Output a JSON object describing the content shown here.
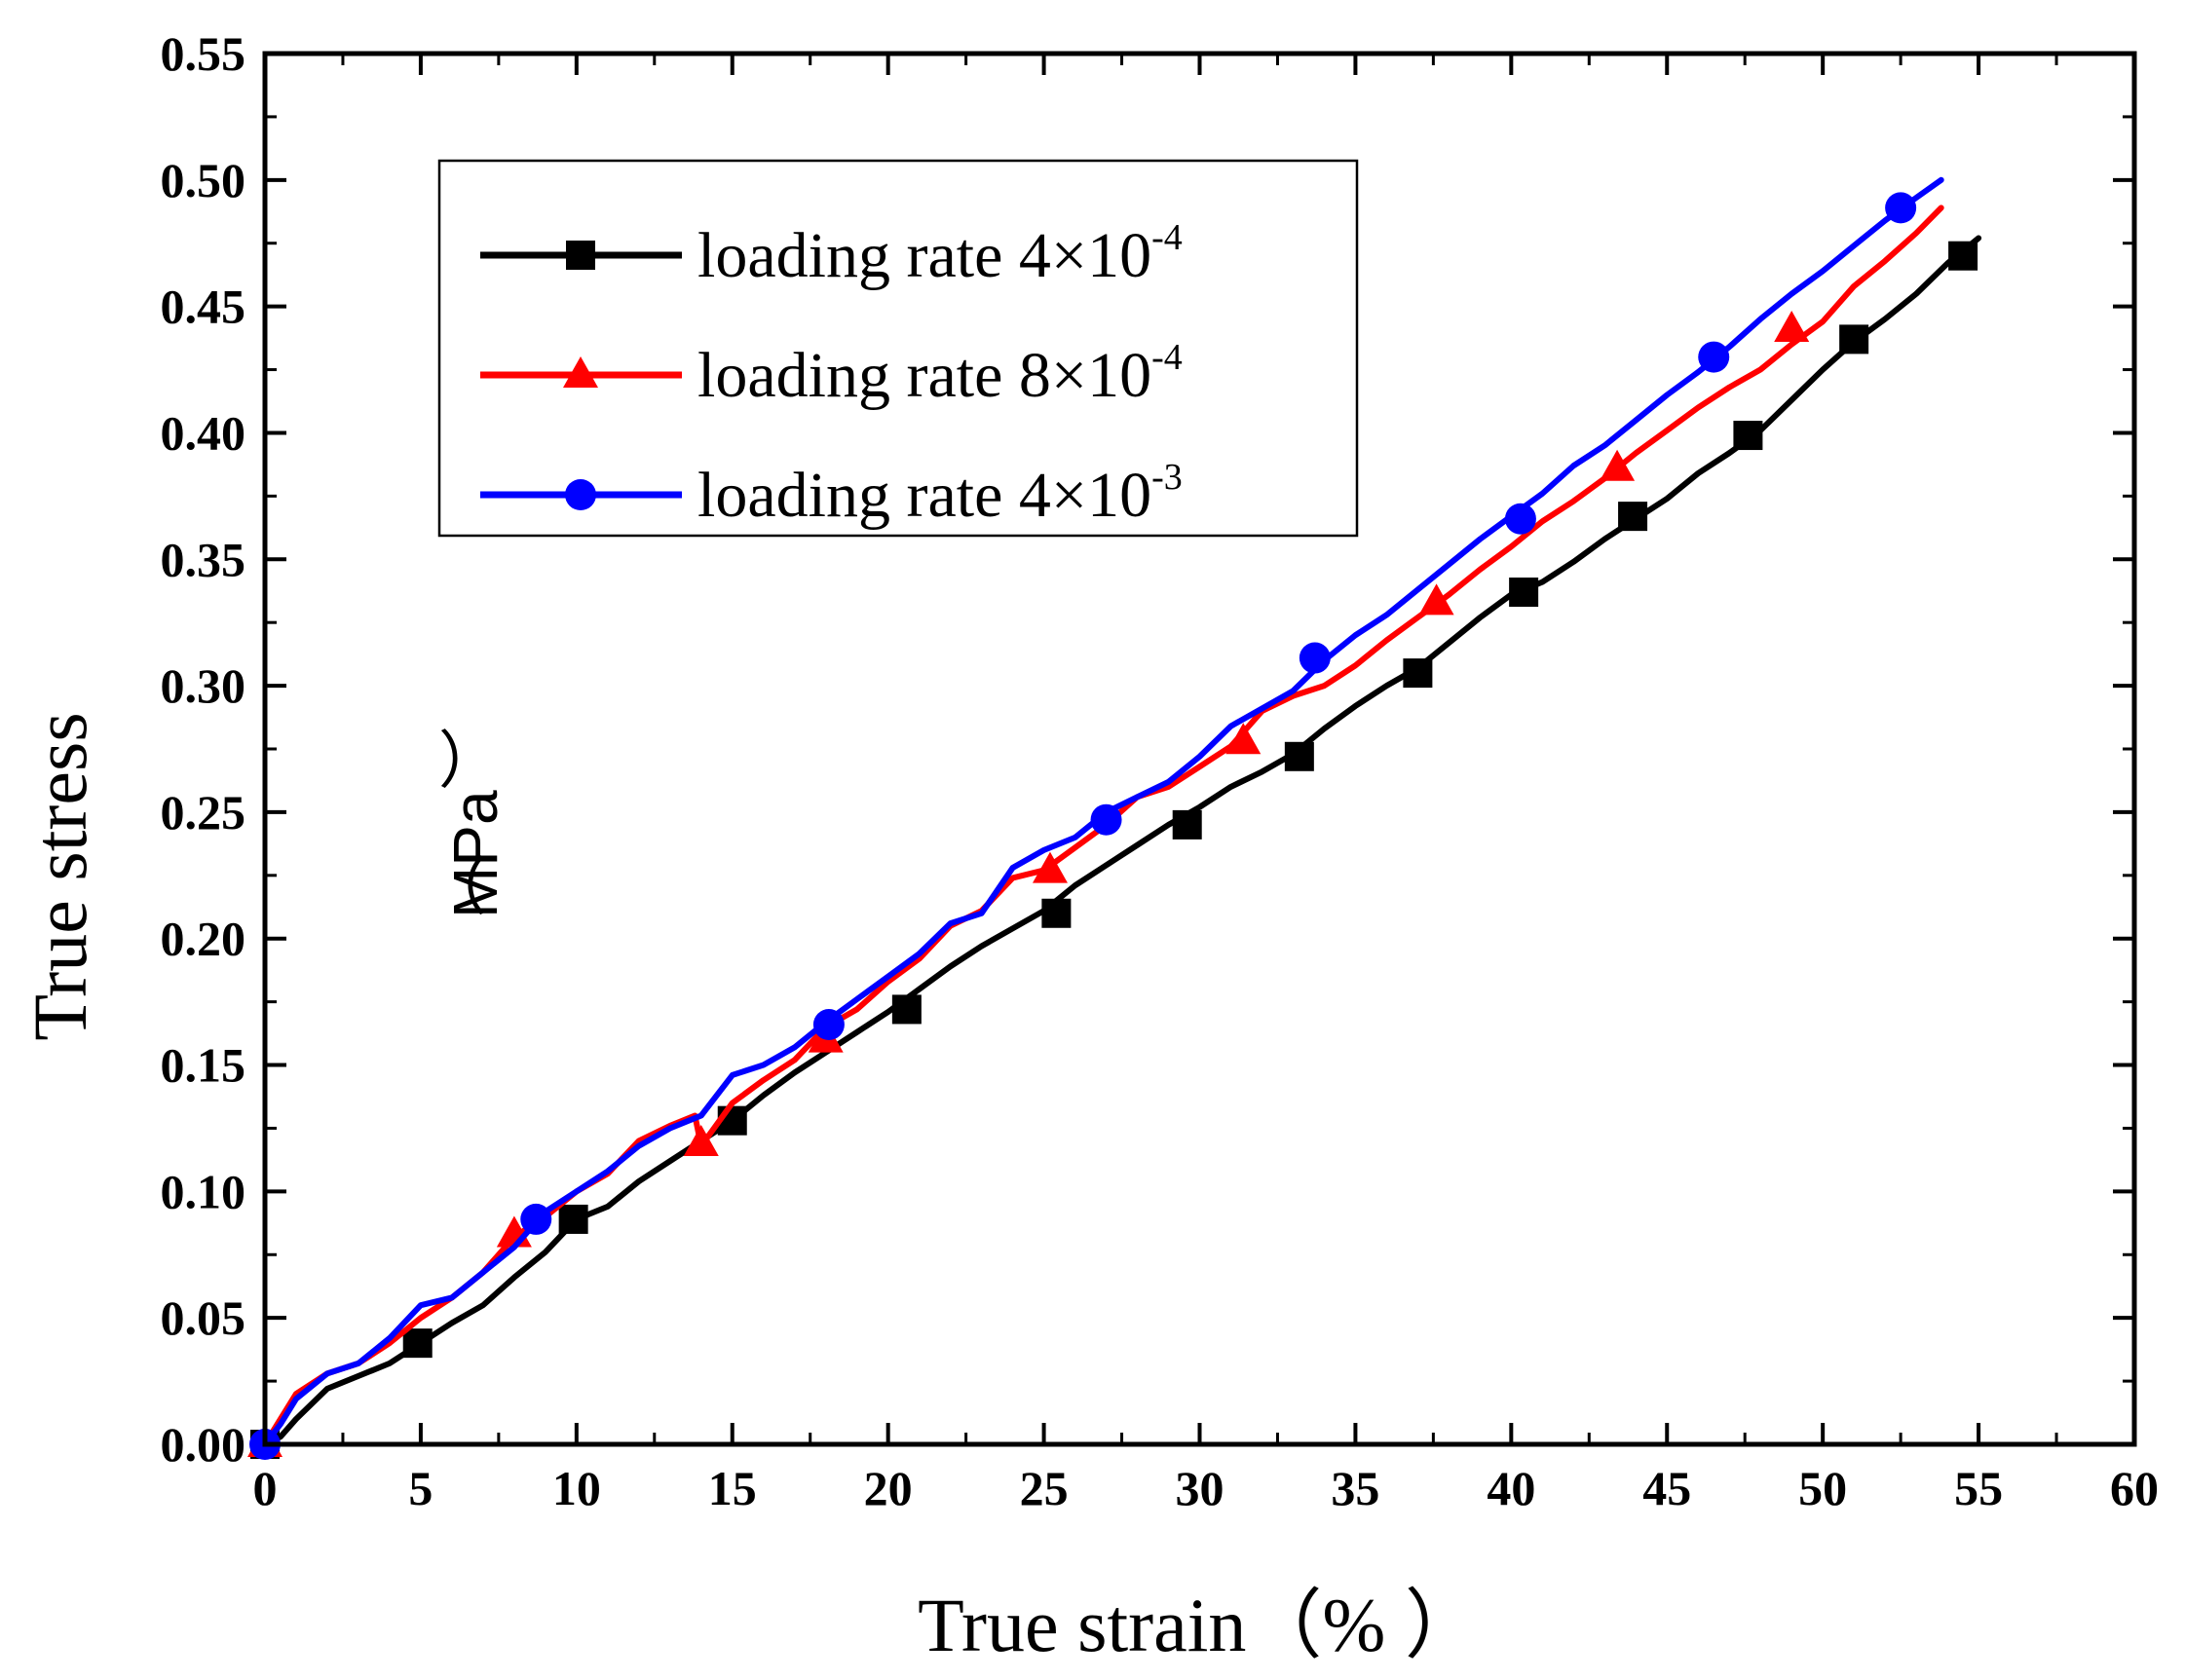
{
  "chart_data": {
    "type": "line",
    "title": "",
    "xlabel": "True strain（%  ）",
    "ylabel": "True stress",
    "ylabel_unit": "（MPa）",
    "ylabel_unit_paren": "（",
    "ylabel_unit_text": "MPa",
    "ylabel_unit_close": "）",
    "xlim": [
      0,
      60
    ],
    "ylim": [
      0,
      0.55
    ],
    "xticks": [
      0,
      5,
      10,
      15,
      20,
      25,
      30,
      35,
      40,
      45,
      50,
      55,
      60
    ],
    "yticks": [
      0.0,
      0.05,
      0.1,
      0.15,
      0.2,
      0.25,
      0.3,
      0.35,
      0.4,
      0.45,
      0.5,
      0.55
    ],
    "xtick_labels": [
      "0",
      "5",
      "10",
      "15",
      "20",
      "25",
      "30",
      "35",
      "40",
      "45",
      "50",
      "55",
      "60"
    ],
    "ytick_labels": [
      "0.00",
      "0.05",
      "0.10",
      "0.15",
      "0.20",
      "0.25",
      "0.30",
      "0.35",
      "0.40",
      "0.45",
      "0.50",
      "0.55"
    ],
    "grid": false,
    "legend_position": "top-left",
    "series": [
      {
        "name": "loading rate 4×10-4",
        "label_base": "loading rate 4×10",
        "label_exp": "-4",
        "color": "#000000",
        "marker": "square",
        "x": [
          0,
          0.5,
          1,
          2,
          3,
          4,
          5,
          6,
          7,
          8,
          9,
          10,
          11,
          12,
          13,
          14,
          15,
          16,
          17,
          18,
          19,
          20,
          21,
          22,
          23,
          24,
          25,
          26,
          27,
          28,
          29,
          30,
          31,
          32,
          33,
          34,
          35,
          36,
          37,
          38,
          39,
          40,
          41,
          42,
          43,
          44,
          45,
          46,
          47,
          48,
          49,
          50,
          51,
          52,
          53,
          54,
          55
        ],
        "y": [
          0.0,
          0.003,
          0.01,
          0.022,
          0.027,
          0.032,
          0.04,
          0.048,
          0.055,
          0.066,
          0.076,
          0.089,
          0.094,
          0.104,
          0.112,
          0.12,
          0.128,
          0.138,
          0.147,
          0.155,
          0.163,
          0.171,
          0.18,
          0.189,
          0.197,
          0.204,
          0.211,
          0.221,
          0.229,
          0.237,
          0.245,
          0.252,
          0.26,
          0.266,
          0.273,
          0.283,
          0.292,
          0.3,
          0.307,
          0.317,
          0.327,
          0.336,
          0.341,
          0.349,
          0.358,
          0.366,
          0.374,
          0.384,
          0.392,
          0.401,
          0.413,
          0.425,
          0.436,
          0.445,
          0.455,
          0.467,
          0.477
        ],
        "marker_x": [
          0,
          4.9,
          9.9,
          15,
          20.6,
          25.4,
          29.6,
          33.2,
          37,
          40.4,
          43.9,
          47.6,
          51,
          54.5
        ],
        "marker_y": [
          0.0,
          0.04,
          0.089,
          0.128,
          0.172,
          0.21,
          0.245,
          0.272,
          0.305,
          0.337,
          0.367,
          0.399,
          0.437,
          0.47
        ]
      },
      {
        "name": "loading rate 8×10-4",
        "label_base": "loading rate 8×10",
        "label_exp": "-4",
        "color": "#ff0000",
        "marker": "triangle",
        "x": [
          0,
          0.5,
          1,
          2,
          3,
          4,
          5,
          6,
          7,
          8,
          9,
          10,
          11,
          12,
          13,
          13.8,
          14,
          15,
          16,
          17,
          18,
          19,
          20,
          21,
          22,
          23,
          24,
          25,
          26,
          27,
          28,
          29,
          30,
          31,
          32,
          33,
          34,
          35,
          36,
          37,
          38,
          39,
          40,
          41,
          42,
          43,
          44,
          45,
          46,
          47,
          48,
          49,
          50,
          51,
          52,
          53,
          53.8
        ],
        "y": [
          0.0,
          0.01,
          0.02,
          0.028,
          0.032,
          0.04,
          0.05,
          0.058,
          0.068,
          0.082,
          0.09,
          0.1,
          0.107,
          0.12,
          0.126,
          0.13,
          0.118,
          0.135,
          0.144,
          0.152,
          0.165,
          0.172,
          0.183,
          0.192,
          0.205,
          0.211,
          0.224,
          0.227,
          0.236,
          0.245,
          0.256,
          0.26,
          0.268,
          0.276,
          0.29,
          0.296,
          0.3,
          0.308,
          0.318,
          0.327,
          0.336,
          0.346,
          0.355,
          0.365,
          0.373,
          0.382,
          0.392,
          0.401,
          0.41,
          0.418,
          0.425,
          0.435,
          0.444,
          0.458,
          0.468,
          0.479,
          0.489
        ],
        "marker_x": [
          0,
          8,
          14,
          18,
          25.2,
          31.4,
          37.6,
          43.4,
          49
        ],
        "marker_y": [
          0.0,
          0.083,
          0.119,
          0.16,
          0.227,
          0.278,
          0.333,
          0.386,
          0.441
        ]
      },
      {
        "name": "loading rate 4×10-3",
        "label_base": "loading rate 4×10",
        "label_exp": "-3",
        "color": "#0000ff",
        "marker": "circle",
        "x": [
          0,
          0.5,
          1,
          2,
          3,
          4,
          5,
          6,
          7,
          8,
          9,
          10,
          11,
          12,
          13,
          14,
          15,
          16,
          17,
          18,
          19,
          20,
          21,
          22,
          23,
          24,
          25,
          26,
          27,
          28,
          29,
          30,
          31,
          32,
          33,
          34,
          35,
          36,
          37,
          38,
          39,
          40,
          41,
          42,
          43,
          44,
          45,
          46,
          47,
          48,
          49,
          50,
          51,
          52,
          53,
          53.8
        ],
        "y": [
          0.0,
          0.008,
          0.018,
          0.028,
          0.032,
          0.042,
          0.055,
          0.058,
          0.068,
          0.078,
          0.092,
          0.1,
          0.108,
          0.118,
          0.125,
          0.13,
          0.146,
          0.15,
          0.157,
          0.167,
          0.176,
          0.185,
          0.194,
          0.206,
          0.21,
          0.228,
          0.235,
          0.24,
          0.25,
          0.256,
          0.262,
          0.272,
          0.284,
          0.291,
          0.298,
          0.31,
          0.32,
          0.328,
          0.338,
          0.348,
          0.358,
          0.367,
          0.376,
          0.387,
          0.395,
          0.405,
          0.415,
          0.424,
          0.434,
          0.445,
          0.455,
          0.464,
          0.474,
          0.484,
          0.493,
          0.5
        ],
        "marker_x": [
          0,
          8.7,
          18.1,
          27,
          33.7,
          40.3,
          46.5,
          52.5
        ],
        "marker_y": [
          0.0,
          0.089,
          0.166,
          0.247,
          0.311,
          0.366,
          0.43,
          0.489
        ]
      }
    ]
  }
}
